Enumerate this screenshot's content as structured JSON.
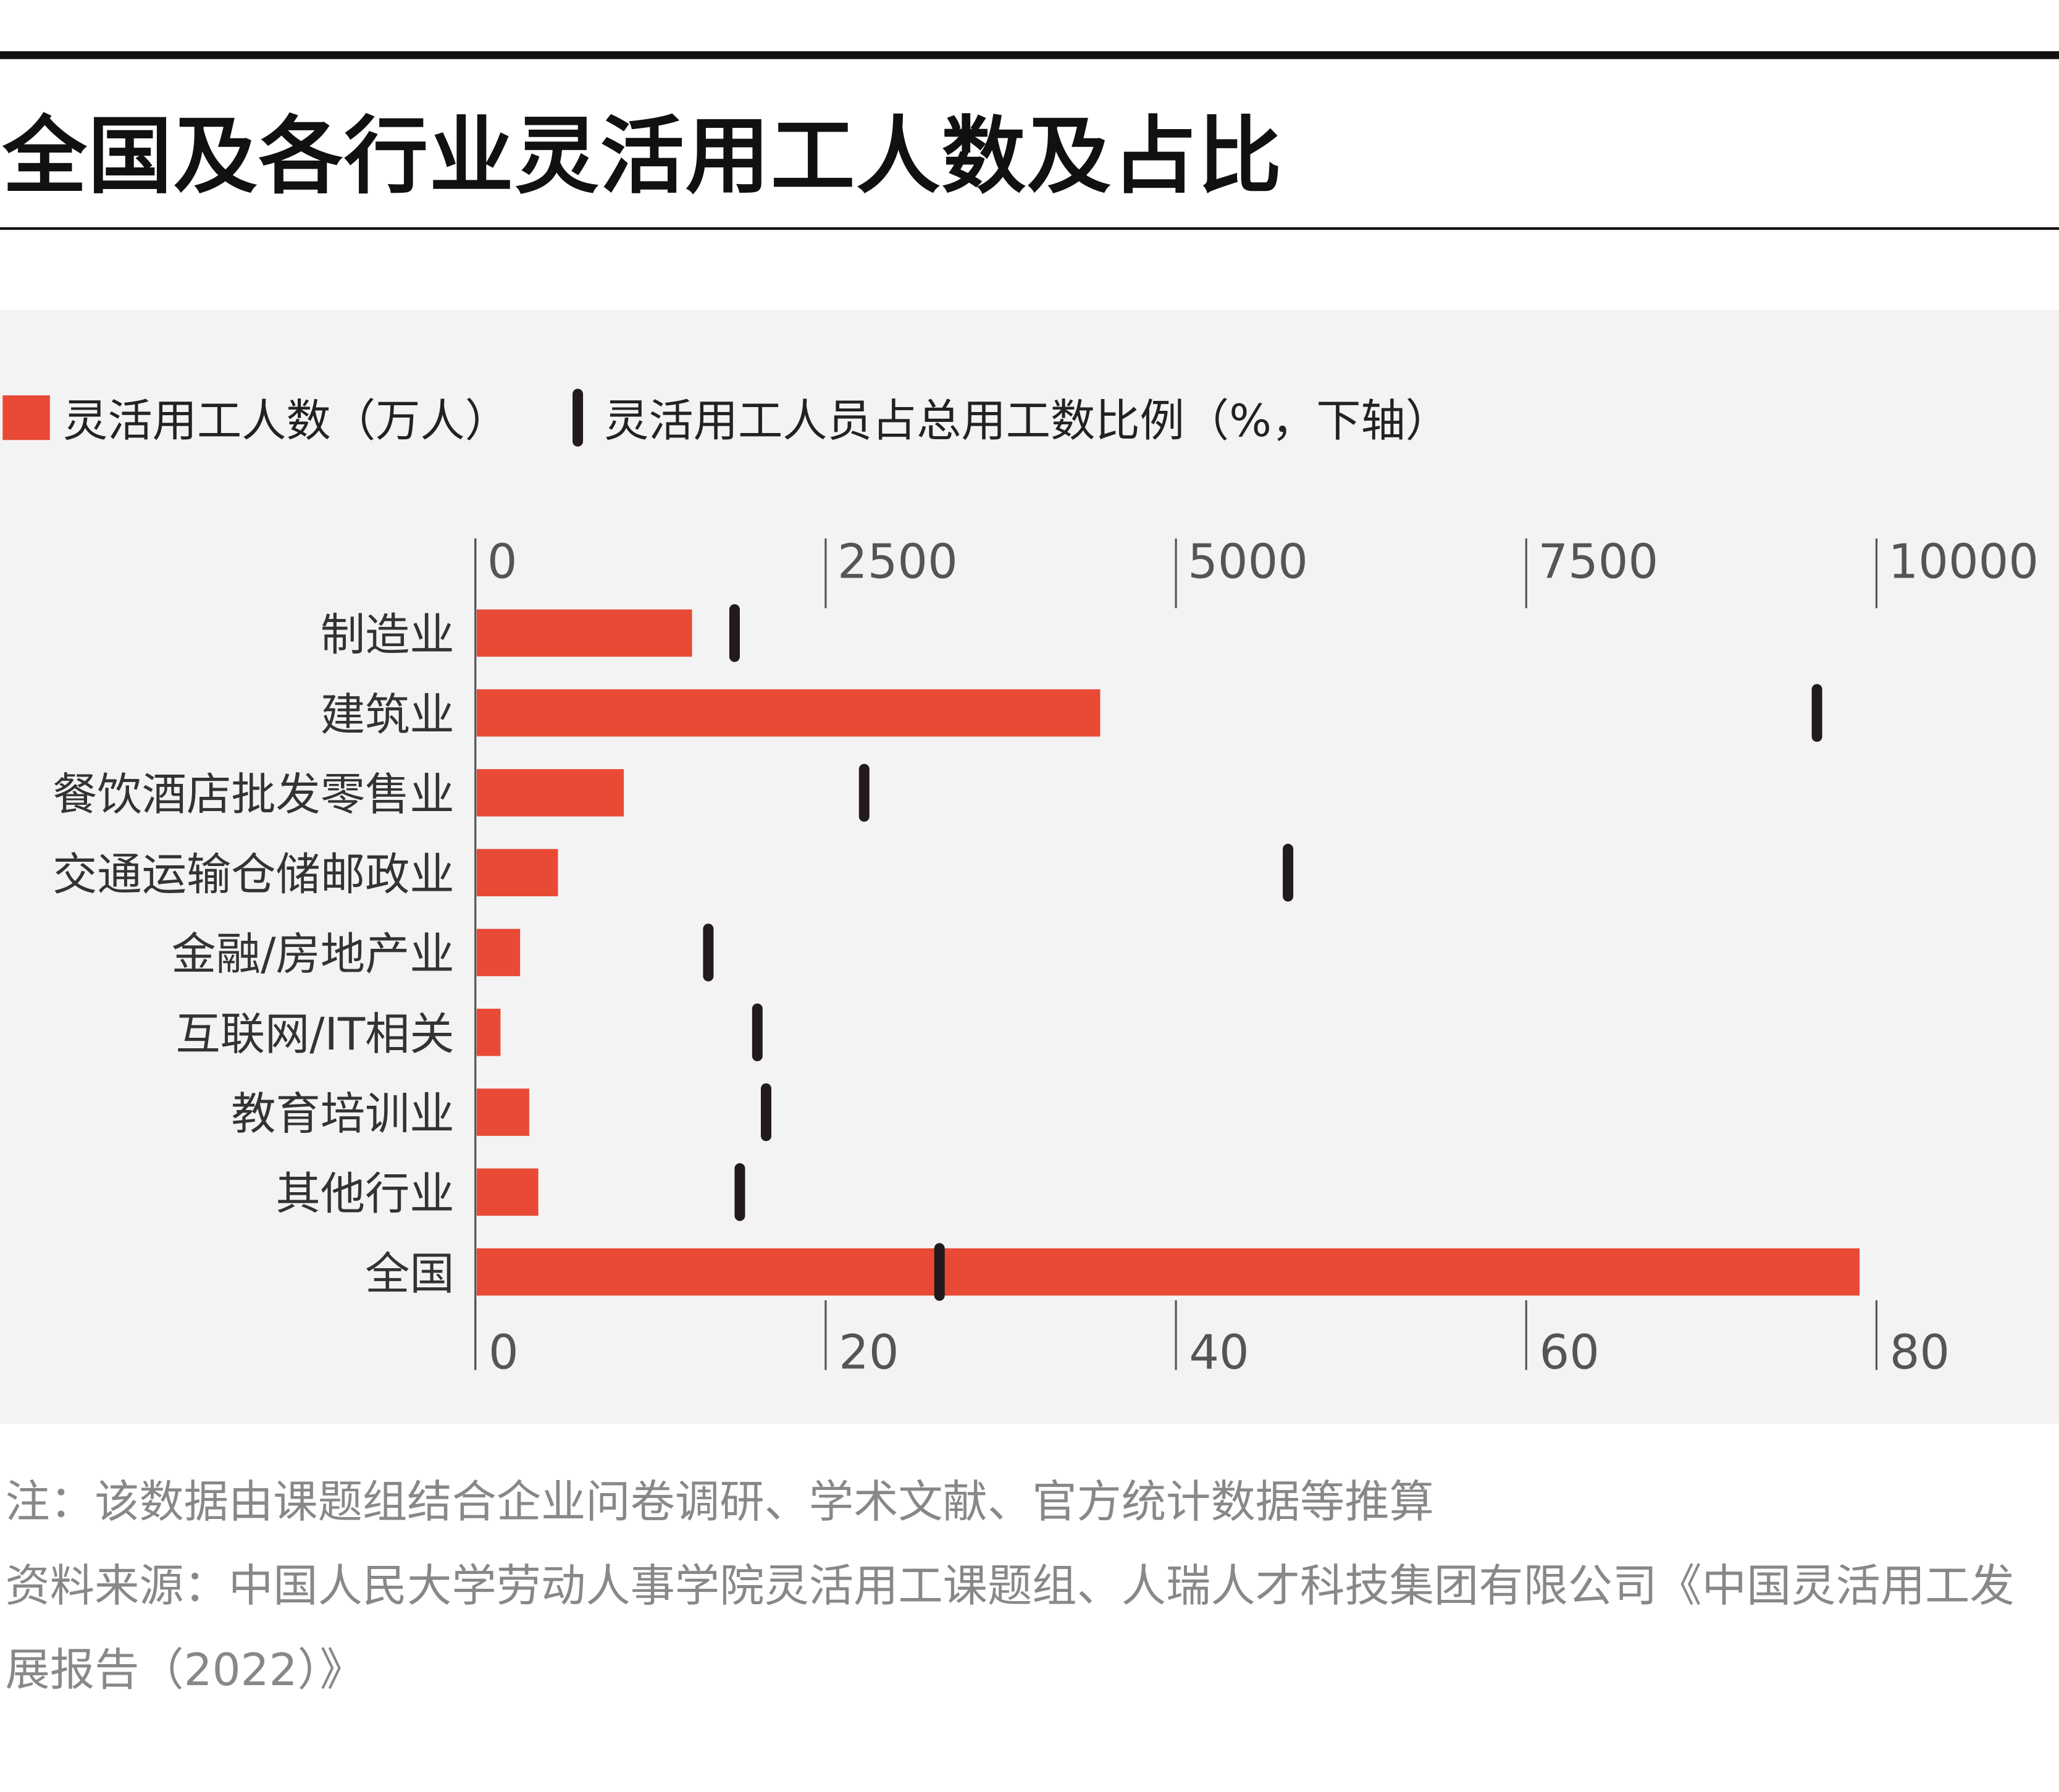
{
  "title": "全国及各行业灵活用工人数及占比",
  "legend": {
    "bar_label": "灵活用工人数（万人）",
    "marker_label": "灵活用工人员占总用工数比例（%，下轴）"
  },
  "notes": {
    "note": "注：该数据由课题组结合企业问卷调研、学术文献、官方统计数据等推算",
    "source": "资料来源：中国人民大学劳动人事学院灵活用工课题组、人瑞人才科技集团有限公司《中国灵活用工发展报告（2022）》"
  },
  "colors": {
    "bar": "#e84a35",
    "marker": "#231a1c",
    "panel": "#f4f3f4"
  },
  "chart_data": {
    "type": "bar",
    "orientation": "horizontal",
    "title": "全国及各行业灵活用工人数及占比",
    "categories": [
      "制造业",
      "建筑业",
      "餐饮酒店批发零售业",
      "交通运输仓储邮政业",
      "金融/房地产业",
      "互联网/IT相关",
      "教育培训业",
      "其他行业",
      "全国"
    ],
    "series": [
      {
        "name": "灵活用工人数（万人）",
        "axis": "top",
        "values": [
          1537,
          4450,
          1050,
          580,
          310,
          170,
          375,
          440,
          9870
        ]
      },
      {
        "name": "灵活用工人员占总用工数比例（%，下轴）",
        "axis": "bottom",
        "type": "marker",
        "values": [
          14.8,
          76.6,
          22.2,
          46.4,
          13.3,
          16.1,
          16.6,
          15.1,
          26.5
        ]
      }
    ],
    "top_axis": {
      "range": [
        0,
        10000
      ],
      "ticks": [
        "0",
        "2500",
        "5000",
        "7500",
        "10000"
      ]
    },
    "bottom_axis": {
      "range": [
        0,
        80
      ],
      "ticks": [
        "0",
        "20",
        "40",
        "60",
        "80"
      ]
    },
    "legend_position": "top-left",
    "grid": false
  }
}
